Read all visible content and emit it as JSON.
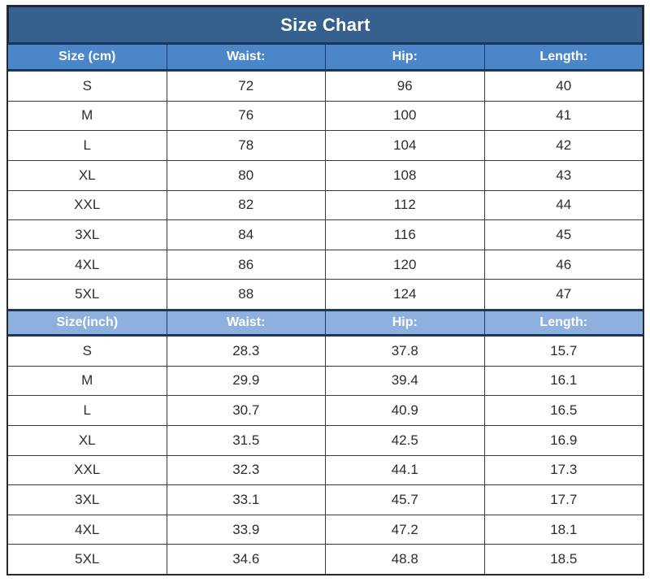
{
  "colors": {
    "page_bg": "#FFFFFF",
    "title_bg": "#36618F",
    "title_text": "#FFFFFF",
    "header_cm_bg": "#4A86C8",
    "header_inch_bg": "#8DB0DE",
    "header_text": "#FFFFFF",
    "accent_navy": "#17375E",
    "outer_border": "#232936",
    "row_line": "#3B3B3B",
    "cell_text": "#2D2D2D",
    "cell_bg": "#FFFFFF"
  },
  "chart_data": {
    "type": "table",
    "title": "Size Chart",
    "sections": [
      {
        "id": "cm",
        "headers": [
          "Size (cm)",
          "Waist:",
          "Hip:",
          "Length:"
        ],
        "rows": [
          [
            "S",
            "72",
            "96",
            "40"
          ],
          [
            "M",
            "76",
            "100",
            "41"
          ],
          [
            "L",
            "78",
            "104",
            "42"
          ],
          [
            "XL",
            "80",
            "108",
            "43"
          ],
          [
            "XXL",
            "82",
            "112",
            "44"
          ],
          [
            "3XL",
            "84",
            "116",
            "45"
          ],
          [
            "4XL",
            "86",
            "120",
            "46"
          ],
          [
            "5XL",
            "88",
            "124",
            "47"
          ]
        ]
      },
      {
        "id": "inch",
        "headers": [
          "Size(inch)",
          "Waist:",
          "Hip:",
          "Length:"
        ],
        "rows": [
          [
            "S",
            "28.3",
            "37.8",
            "15.7"
          ],
          [
            "M",
            "29.9",
            "39.4",
            "16.1"
          ],
          [
            "L",
            "30.7",
            "40.9",
            "16.5"
          ],
          [
            "XL",
            "31.5",
            "42.5",
            "16.9"
          ],
          [
            "XXL",
            "32.3",
            "44.1",
            "17.3"
          ],
          [
            "3XL",
            "33.1",
            "45.7",
            "17.7"
          ],
          [
            "4XL",
            "33.9",
            "47.2",
            "18.1"
          ],
          [
            "5XL",
            "34.6",
            "48.8",
            "18.5"
          ]
        ]
      }
    ]
  }
}
